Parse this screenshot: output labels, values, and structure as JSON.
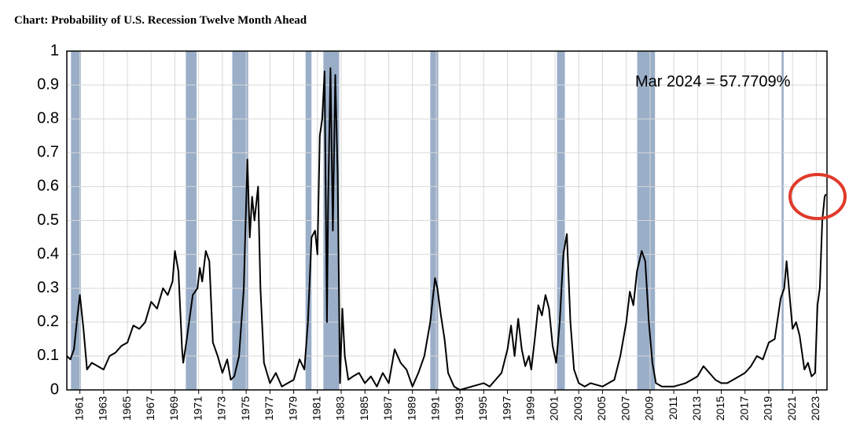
{
  "chart_data": {
    "type": "line",
    "title": "Chart: Probability of U.S. Recession Twelve Month Ahead",
    "annotation": "Mar 2024 = 57.7709%",
    "color": "#000000",
    "recession_color": "#9aaec8",
    "grid": true,
    "xlim": [
      1959.9,
      2023.9
    ],
    "ylim": [
      0,
      1
    ],
    "yticks": [
      0,
      0.1,
      0.2,
      0.3,
      0.4,
      0.5,
      0.6,
      0.7,
      0.8,
      0.9,
      1
    ],
    "xticks": [
      1961,
      1963,
      1965,
      1967,
      1969,
      1971,
      1973,
      1975,
      1977,
      1979,
      1981,
      1983,
      1985,
      1987,
      1989,
      1991,
      1993,
      1995,
      1997,
      1999,
      2001,
      2003,
      2005,
      2007,
      2009,
      2011,
      2013,
      2015,
      2017,
      2019,
      2021,
      2023
    ],
    "recessions": [
      [
        1960.25,
        1961.08
      ],
      [
        1969.92,
        1970.83
      ],
      [
        1973.83,
        1975.17
      ],
      [
        1980.0,
        1980.5
      ],
      [
        1981.5,
        1982.83
      ],
      [
        1990.5,
        1991.17
      ],
      [
        2001.17,
        2001.83
      ],
      [
        2007.92,
        2009.42
      ],
      [
        2020.08,
        2020.25
      ]
    ],
    "x": [
      1959.9,
      1960.2,
      1960.5,
      1960.8,
      1961.0,
      1961.3,
      1961.6,
      1962.0,
      1962.5,
      1963.0,
      1963.5,
      1964.0,
      1964.5,
      1965.0,
      1965.5,
      1966.0,
      1966.5,
      1967.0,
      1967.5,
      1968.0,
      1968.4,
      1968.8,
      1969.0,
      1969.3,
      1969.6,
      1969.7,
      1970.0,
      1970.5,
      1970.9,
      1971.1,
      1971.3,
      1971.6,
      1971.9,
      1972.2,
      1972.6,
      1973.0,
      1973.4,
      1973.7,
      1974.0,
      1974.4,
      1974.8,
      1975.1,
      1975.3,
      1975.5,
      1975.7,
      1976.0,
      1976.2,
      1976.5,
      1977.0,
      1977.5,
      1978.0,
      1978.5,
      1979.0,
      1979.5,
      1979.9,
      1980.2,
      1980.5,
      1980.8,
      1981.0,
      1981.2,
      1981.4,
      1981.6,
      1981.8,
      1981.9,
      1982.1,
      1982.3,
      1982.5,
      1982.7,
      1982.9,
      1983.1,
      1983.3,
      1983.6,
      1984.0,
      1984.5,
      1985.0,
      1985.5,
      1986.0,
      1986.5,
      1987.0,
      1987.5,
      1988.0,
      1988.5,
      1989.0,
      1989.5,
      1990.0,
      1990.5,
      1990.9,
      1991.1,
      1991.4,
      1991.7,
      1992.0,
      1992.5,
      1993.0,
      1994.0,
      1995.0,
      1995.5,
      1996.0,
      1996.5,
      1997.0,
      1997.3,
      1997.6,
      1997.9,
      1998.2,
      1998.5,
      1998.8,
      1999.0,
      1999.3,
      1999.6,
      1999.9,
      2000.2,
      2000.5,
      2000.8,
      2001.1,
      2001.4,
      2001.7,
      2002.0,
      2002.3,
      2002.6,
      2003.0,
      2003.5,
      2004.0,
      2005.0,
      2006.0,
      2006.5,
      2007.0,
      2007.3,
      2007.6,
      2007.9,
      2008.3,
      2008.6,
      2008.9,
      2009.2,
      2009.5,
      2010.0,
      2011.0,
      2012.0,
      2012.5,
      2013.0,
      2013.5,
      2014.0,
      2014.5,
      2015.0,
      2015.5,
      2016.0,
      2016.5,
      2017.0,
      2017.5,
      2018.0,
      2018.5,
      2019.0,
      2019.5,
      2020.0,
      2020.3,
      2020.5,
      2020.7,
      2021.0,
      2021.3,
      2021.6,
      2022.0,
      2022.3,
      2022.6,
      2022.9,
      2023.1,
      2023.3,
      2023.5,
      2023.7,
      2023.8
    ],
    "values": [
      0.1,
      0.09,
      0.12,
      0.22,
      0.28,
      0.18,
      0.06,
      0.08,
      0.07,
      0.06,
      0.1,
      0.11,
      0.13,
      0.14,
      0.19,
      0.18,
      0.2,
      0.26,
      0.24,
      0.3,
      0.28,
      0.32,
      0.41,
      0.35,
      0.12,
      0.08,
      0.15,
      0.28,
      0.3,
      0.36,
      0.32,
      0.41,
      0.38,
      0.14,
      0.1,
      0.05,
      0.09,
      0.03,
      0.04,
      0.1,
      0.3,
      0.68,
      0.45,
      0.57,
      0.5,
      0.6,
      0.3,
      0.08,
      0.02,
      0.05,
      0.01,
      0.02,
      0.03,
      0.09,
      0.06,
      0.2,
      0.45,
      0.47,
      0.4,
      0.75,
      0.8,
      0.94,
      0.2,
      0.55,
      0.95,
      0.47,
      0.93,
      0.64,
      0.02,
      0.24,
      0.1,
      0.03,
      0.04,
      0.05,
      0.02,
      0.04,
      0.01,
      0.05,
      0.02,
      0.12,
      0.08,
      0.06,
      0.01,
      0.05,
      0.1,
      0.2,
      0.33,
      0.3,
      0.22,
      0.15,
      0.05,
      0.01,
      0.0,
      0.01,
      0.02,
      0.01,
      0.03,
      0.05,
      0.12,
      0.19,
      0.1,
      0.21,
      0.12,
      0.07,
      0.1,
      0.06,
      0.15,
      0.25,
      0.22,
      0.28,
      0.24,
      0.13,
      0.08,
      0.2,
      0.4,
      0.46,
      0.2,
      0.06,
      0.02,
      0.01,
      0.02,
      0.01,
      0.03,
      0.1,
      0.2,
      0.29,
      0.25,
      0.35,
      0.41,
      0.38,
      0.2,
      0.08,
      0.02,
      0.01,
      0.01,
      0.02,
      0.03,
      0.04,
      0.07,
      0.05,
      0.03,
      0.02,
      0.02,
      0.03,
      0.04,
      0.05,
      0.07,
      0.1,
      0.09,
      0.14,
      0.15,
      0.27,
      0.3,
      0.38,
      0.3,
      0.18,
      0.2,
      0.16,
      0.06,
      0.08,
      0.04,
      0.05,
      0.25,
      0.3,
      0.5,
      0.57,
      0.5777
    ]
  }
}
